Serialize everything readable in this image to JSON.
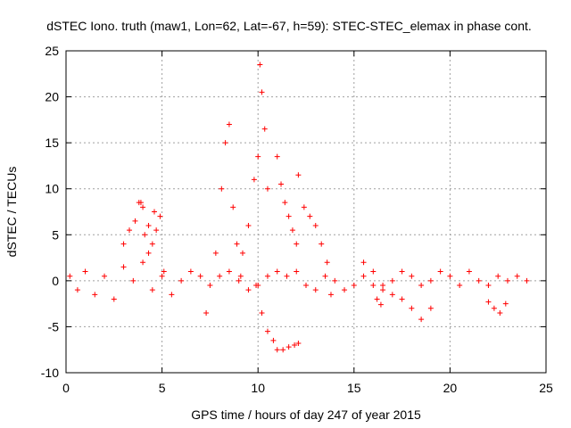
{
  "chart_data": {
    "type": "scatter",
    "title": "dSTEC Iono. truth (maw1, Lon=62, Lat=-67, h=59): STEC-STEC_elemax in phase cont.",
    "xlabel": "GPS time / hours of day 247 of year 2015",
    "ylabel": "dSTEC  / TECUs",
    "xlim": [
      0,
      25
    ],
    "ylim": [
      -10,
      25
    ],
    "xticks": [
      0,
      5,
      10,
      15,
      20,
      25
    ],
    "yticks": [
      -10,
      -5,
      0,
      5,
      10,
      15,
      20,
      25
    ],
    "grid": true,
    "marker": "+",
    "color": "#ff0000",
    "series": [
      {
        "x": [
          0.2,
          0.6,
          1.0,
          1.5,
          2.0,
          2.5,
          3.0,
          3.5,
          4.0,
          4.5,
          5.0,
          5.5,
          6.0,
          6.5,
          7.0,
          7.5,
          8.0,
          8.5,
          9.0,
          9.5,
          10.0,
          10.5,
          11.0,
          11.5,
          12.0,
          12.5,
          13.0,
          13.5,
          14.0,
          14.5,
          15.0,
          15.5,
          16.0,
          16.5,
          17.0,
          17.5,
          18.0,
          18.5,
          19.0,
          19.5,
          20.0,
          20.5,
          21.0,
          21.5,
          22.0,
          22.5,
          23.0,
          23.5,
          24.0
        ],
        "y": [
          0.5,
          -1.0,
          1.0,
          -1.5,
          0.5,
          -2.0,
          1.5,
          0.0,
          2.0,
          -1.0,
          0.5,
          -1.5,
          0.0,
          1.0,
          0.5,
          -0.5,
          0.5,
          1.0,
          0.0,
          -1.0,
          -0.5,
          0.5,
          1.0,
          0.5,
          1.0,
          -0.5,
          -1.0,
          0.5,
          0.0,
          -1.0,
          -0.5,
          0.5,
          1.0,
          -0.5,
          0.0,
          1.0,
          0.5,
          -0.5,
          0.0,
          1.0,
          0.5,
          -0.5,
          1.0,
          0.0,
          -0.5,
          0.5,
          0.0,
          0.5,
          0.0
        ]
      },
      {
        "x": [
          3.0,
          3.3,
          3.6,
          3.9,
          4.1,
          4.3,
          4.5,
          4.7,
          4.9,
          5.1
        ],
        "y": [
          4.0,
          5.5,
          6.5,
          8.5,
          5.0,
          3.0,
          4.0,
          5.5,
          7.0,
          1.0
        ]
      },
      {
        "x": [
          7.3,
          7.8,
          8.1,
          8.3,
          8.5,
          8.7,
          8.9,
          9.1
        ],
        "y": [
          -3.5,
          3.0,
          10.0,
          15.0,
          17.0,
          8.0,
          4.0,
          0.5
        ]
      },
      {
        "x": [
          9.2,
          9.5,
          9.8,
          10.0,
          10.1,
          10.2,
          10.35,
          10.5
        ],
        "y": [
          3.0,
          6.0,
          11.0,
          13.5,
          23.5,
          20.5,
          16.5,
          10.0
        ]
      },
      {
        "x": [
          9.9,
          10.2,
          10.5,
          10.8,
          11.0,
          11.3,
          11.6,
          11.9,
          12.1
        ],
        "y": [
          -0.5,
          -3.5,
          -5.5,
          -6.5,
          -7.5,
          -7.5,
          -7.2,
          -7.0,
          -6.8
        ]
      },
      {
        "x": [
          11.0,
          11.2,
          11.4,
          11.6,
          11.8,
          12.0
        ],
        "y": [
          13.5,
          10.5,
          8.5,
          7.0,
          5.5,
          4.0
        ]
      },
      {
        "x": [
          12.1,
          12.4,
          12.7,
          13.0,
          13.3,
          13.6,
          13.8
        ],
        "y": [
          11.5,
          8.0,
          7.0,
          6.0,
          4.0,
          2.0,
          -1.5
        ]
      },
      {
        "x": [
          15.5,
          16.0,
          16.5,
          17.0,
          17.5,
          18.0,
          18.5,
          19.0
        ],
        "y": [
          2.0,
          -0.5,
          -1.0,
          -1.5,
          -2.0,
          -3.0,
          -4.2,
          -3.0
        ]
      },
      {
        "x": [
          22.0,
          22.3,
          22.6,
          22.9
        ],
        "y": [
          -2.3,
          -3.0,
          -3.5,
          -2.5
        ]
      },
      {
        "x": [
          3.8,
          4.0,
          4.3,
          4.6
        ],
        "y": [
          8.5,
          8.0,
          6.0,
          7.5
        ]
      },
      {
        "x": [
          16.2,
          16.4
        ],
        "y": [
          -2.0,
          -2.6
        ]
      }
    ]
  }
}
